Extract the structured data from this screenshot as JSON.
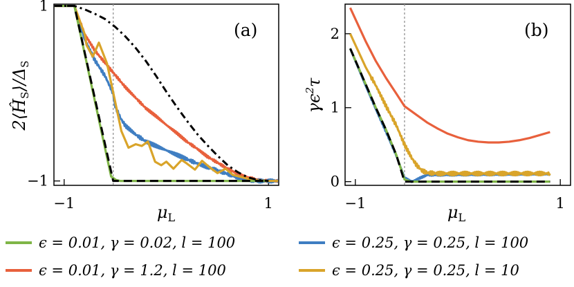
{
  "chart_data": [
    {
      "type": "line",
      "panel_label": "(a)",
      "xlabel": "μL",
      "ylabel": "2⟨ĤS⟩/ΔS",
      "xlim": [
        -1.1,
        1.1
      ],
      "ylim": [
        -1.05,
        1.02
      ],
      "xticks": [
        {
          "v": -1,
          "label": "−1"
        },
        {
          "v": 1,
          "label": "1"
        }
      ],
      "yticks": [
        {
          "v": 1,
          "label": "1"
        },
        {
          "v": -1,
          "label": "−1"
        }
      ],
      "vline_x": -0.52,
      "series": [
        {
          "key": "red",
          "color": "#e8603c",
          "points": [
            [
              -1.1,
              1.0
            ],
            [
              -0.9,
              1.0
            ],
            [
              -0.8,
              0.68
            ],
            [
              -0.7,
              0.49
            ],
            [
              -0.6,
              0.35
            ],
            [
              -0.5,
              0.21
            ],
            [
              -0.4,
              0.07
            ],
            [
              -0.3,
              -0.05
            ],
            [
              -0.2,
              -0.17
            ],
            [
              -0.1,
              -0.26
            ],
            [
              0.0,
              -0.36
            ],
            [
              0.1,
              -0.45
            ],
            [
              0.2,
              -0.55
            ],
            [
              0.3,
              -0.63
            ],
            [
              0.4,
              -0.72
            ],
            [
              0.5,
              -0.79
            ],
            [
              0.6,
              -0.86
            ],
            [
              0.7,
              -0.92
            ],
            [
              0.8,
              -0.96
            ],
            [
              0.9,
              -0.99
            ],
            [
              1.0,
              -1.0
            ],
            [
              1.15,
              -1.0
            ]
          ],
          "wiggle": 0.012
        },
        {
          "key": "blue",
          "color": "#3f7ec2",
          "points": [
            [
              -1.1,
              1.0
            ],
            [
              -0.9,
              1.0
            ],
            [
              -0.8,
              0.62
            ],
            [
              -0.7,
              0.38
            ],
            [
              -0.6,
              0.2
            ],
            [
              -0.52,
              0.0
            ],
            [
              -0.5,
              -0.15
            ],
            [
              -0.45,
              -0.28
            ],
            [
              -0.4,
              -0.37
            ],
            [
              -0.3,
              -0.47
            ],
            [
              -0.2,
              -0.55
            ],
            [
              -0.1,
              -0.6
            ],
            [
              0.0,
              -0.65
            ],
            [
              0.1,
              -0.7
            ],
            [
              0.2,
              -0.75
            ],
            [
              0.3,
              -0.8
            ],
            [
              0.4,
              -0.84
            ],
            [
              0.5,
              -0.88
            ],
            [
              0.6,
              -0.92
            ],
            [
              0.7,
              -0.96
            ],
            [
              0.8,
              -0.99
            ],
            [
              0.9,
              -1.0
            ],
            [
              1.15,
              -1.0
            ]
          ],
          "wiggle": 0.018
        },
        {
          "key": "gold",
          "color": "#d9a42a",
          "points": [
            [
              -1.1,
              1.0
            ],
            [
              -0.9,
              1.0
            ],
            [
              -0.8,
              0.68
            ],
            [
              -0.78,
              0.55
            ],
            [
              -0.72,
              0.42
            ],
            [
              -0.66,
              0.58
            ],
            [
              -0.58,
              0.34
            ],
            [
              -0.5,
              -0.1
            ],
            [
              -0.44,
              -0.43
            ],
            [
              -0.37,
              -0.62
            ],
            [
              -0.3,
              -0.58
            ],
            [
              -0.24,
              -0.6
            ],
            [
              -0.18,
              -0.55
            ],
            [
              -0.11,
              -0.78
            ],
            [
              -0.05,
              -0.82
            ],
            [
              0.0,
              -0.78
            ],
            [
              0.07,
              -0.86
            ],
            [
              0.15,
              -0.76
            ],
            [
              0.2,
              -0.8
            ],
            [
              0.28,
              -0.87
            ],
            [
              0.35,
              -0.77
            ],
            [
              0.42,
              -0.84
            ],
            [
              0.5,
              -0.91
            ],
            [
              0.58,
              -0.86
            ],
            [
              0.65,
              -0.93
            ],
            [
              0.75,
              -0.96
            ],
            [
              0.85,
              -0.99
            ],
            [
              1.0,
              -1.0
            ],
            [
              1.15,
              -1.0
            ]
          ],
          "wiggle": 0
        },
        {
          "key": "green",
          "color": "#7fb547",
          "points": [
            [
              -1.1,
              1.0
            ],
            [
              -0.9,
              1.0
            ],
            [
              -0.54,
              -0.95
            ],
            [
              -0.49,
              -0.99
            ],
            [
              -0.45,
              -1.0
            ],
            [
              1.0,
              -1.0
            ]
          ],
          "wiggle": 0
        },
        {
          "key": "black-dashed",
          "color": "#000000",
          "dash": true,
          "points": [
            [
              -1.1,
              1.0
            ],
            [
              -0.9,
              1.0
            ],
            [
              -0.52,
              -1.0
            ],
            [
              1.0,
              -1.0
            ]
          ],
          "wiggle": 0
        },
        {
          "key": "black-dashdot",
          "color": "#000000",
          "dashdot": true,
          "points": [
            [
              -1.1,
              1.0
            ],
            [
              -0.9,
              1.0
            ],
            [
              -0.8,
              0.96
            ],
            [
              -0.7,
              0.91
            ],
            [
              -0.6,
              0.85
            ],
            [
              -0.5,
              0.76
            ],
            [
              -0.4,
              0.65
            ],
            [
              -0.3,
              0.52
            ],
            [
              -0.2,
              0.37
            ],
            [
              -0.1,
              0.2
            ],
            [
              0.0,
              0.02
            ],
            [
              0.1,
              -0.15
            ],
            [
              0.2,
              -0.31
            ],
            [
              0.3,
              -0.46
            ],
            [
              0.4,
              -0.59
            ],
            [
              0.5,
              -0.71
            ],
            [
              0.6,
              -0.82
            ],
            [
              0.7,
              -0.9
            ],
            [
              0.8,
              -0.96
            ],
            [
              0.9,
              -0.99
            ],
            [
              1.0,
              -1.0
            ]
          ],
          "wiggle": 0
        }
      ]
    },
    {
      "type": "line",
      "panel_label": "(b)",
      "xlabel": "μL",
      "ylabel": "γϵ²τ",
      "xlim": [
        -1.1,
        1.1
      ],
      "ylim": [
        -0.05,
        2.4
      ],
      "xticks": [
        {
          "v": -1,
          "label": "−1"
        },
        {
          "v": 1,
          "label": "1"
        }
      ],
      "yticks": [
        {
          "v": 2,
          "label": "2"
        },
        {
          "v": 1,
          "label": "1"
        },
        {
          "v": 0,
          "label": "0"
        }
      ],
      "vline_x": -0.52,
      "series": [
        {
          "key": "red",
          "color": "#e8603c",
          "points": [
            [
              -1.05,
              2.35
            ],
            [
              -0.9,
              1.9
            ],
            [
              -0.8,
              1.63
            ],
            [
              -0.7,
              1.4
            ],
            [
              -0.6,
              1.19
            ],
            [
              -0.52,
              1.02
            ],
            [
              -0.4,
              0.9
            ],
            [
              -0.3,
              0.8
            ],
            [
              -0.2,
              0.72
            ],
            [
              -0.1,
              0.65
            ],
            [
              0.0,
              0.6
            ],
            [
              0.1,
              0.56
            ],
            [
              0.2,
              0.54
            ],
            [
              0.3,
              0.53
            ],
            [
              0.4,
              0.53
            ],
            [
              0.5,
              0.54
            ],
            [
              0.6,
              0.56
            ],
            [
              0.7,
              0.59
            ],
            [
              0.8,
              0.63
            ],
            [
              0.9,
              0.67
            ]
          ],
          "wiggle": 0
        },
        {
          "key": "gold",
          "color": "#d9a42a",
          "points": [
            [
              -1.05,
              2.0
            ],
            [
              -0.9,
              1.55
            ],
            [
              -0.8,
              1.3
            ],
            [
              -0.7,
              1.02
            ],
            [
              -0.6,
              0.76
            ],
            [
              -0.52,
              0.5
            ],
            [
              -0.45,
              0.32
            ],
            [
              -0.4,
              0.22
            ],
            [
              -0.35,
              0.15
            ],
            [
              -0.3,
              0.12
            ],
            [
              -0.2,
              0.11
            ],
            [
              0.9,
              0.11
            ]
          ],
          "wiggle": 0.025
        },
        {
          "key": "blue",
          "color": "#3f7ec2",
          "points": [
            [
              -1.05,
              1.8
            ],
            [
              -0.9,
              1.3
            ],
            [
              -0.8,
              0.98
            ],
            [
              -0.7,
              0.67
            ],
            [
              -0.6,
              0.35
            ],
            [
              -0.52,
              0.05
            ],
            [
              -0.45,
              0.0
            ],
            [
              -0.3,
              0.09
            ],
            [
              -0.2,
              0.09
            ],
            [
              0.9,
              0.1
            ]
          ],
          "wiggle": 0.01
        },
        {
          "key": "green",
          "color": "#7fb547",
          "points": [
            [
              -1.05,
              1.8
            ],
            [
              -0.9,
              1.32
            ],
            [
              -0.8,
              1.0
            ],
            [
              -0.7,
              0.7
            ],
            [
              -0.6,
              0.36
            ],
            [
              -0.52,
              0.03
            ],
            [
              -0.46,
              0.0
            ],
            [
              0.9,
              0.0
            ]
          ],
          "wiggle": 0
        },
        {
          "key": "black-dashed",
          "color": "#000000",
          "dash": true,
          "points": [
            [
              -1.05,
              1.8
            ],
            [
              -0.9,
              1.32
            ],
            [
              -0.8,
              1.0
            ],
            [
              -0.7,
              0.7
            ],
            [
              -0.6,
              0.36
            ],
            [
              -0.52,
              0.0
            ],
            [
              0.9,
              0.0
            ]
          ],
          "wiggle": 0
        }
      ]
    }
  ],
  "legend": [
    {
      "color": "#7fb547",
      "text": "ϵ = 0.01, γ = 0.02, l = 100"
    },
    {
      "color": "#3f7ec2",
      "text": "ϵ = 0.25, γ = 0.25, l = 100"
    },
    {
      "color": "#e8603c",
      "text": "ϵ = 0.01, γ = 1.2, l = 100"
    },
    {
      "color": "#d9a42a",
      "text": "ϵ = 0.25, γ = 0.25, l = 10"
    }
  ]
}
